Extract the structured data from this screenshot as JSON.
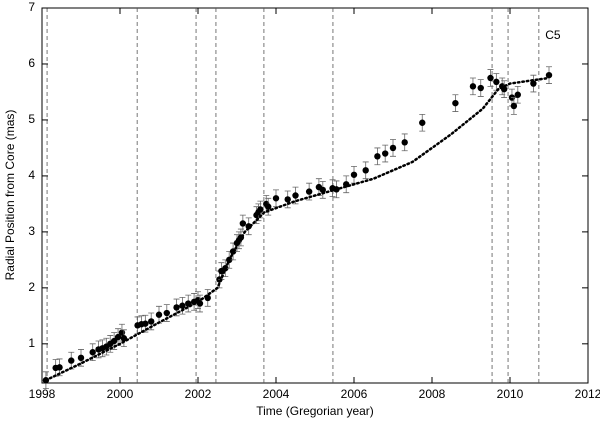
{
  "chart_data": {
    "type": "scatter",
    "xlabel": "Time (Gregorian year)",
    "ylabel": "Radial Position from Core (mas)",
    "annotation": {
      "text": "C5",
      "x": 2011.1,
      "y": 6.5
    },
    "xlim": [
      1998,
      2012
    ],
    "xticks": [
      1998,
      2000,
      2002,
      2004,
      2006,
      2008,
      2010,
      2012
    ],
    "ylim": [
      0.3,
      7
    ],
    "yticks": [
      1,
      2,
      3,
      4,
      5,
      6,
      7
    ],
    "vlines": [
      1998.13,
      2000.44,
      2001.95,
      2002.46,
      2003.69,
      2005.46,
      2009.54,
      2009.95,
      2010.74
    ],
    "series": [
      {
        "style": "points",
        "color": "#000000",
        "x": [
          1998.1,
          1998.35,
          1998.45,
          1998.75,
          1999.0,
          1999.3,
          1999.45,
          1999.55,
          1999.65,
          1999.75,
          1999.85,
          1999.95,
          2000.05,
          2000.1,
          2000.45,
          2000.55,
          2000.65,
          2000.8,
          2001.0,
          2001.2,
          2001.45,
          2001.6,
          2001.75,
          2001.9,
          2002.0,
          2002.05,
          2002.25,
          2002.55,
          2002.6,
          2002.7,
          2002.8,
          2002.9,
          2003.0,
          2003.05,
          2003.1,
          2003.15,
          2003.3,
          2003.5,
          2003.55,
          2003.6,
          2003.75,
          2003.8,
          2004.0,
          2004.3,
          2004.5,
          2004.85,
          2005.1,
          2005.2,
          2005.45,
          2005.55,
          2005.8,
          2006.0,
          2006.3,
          2006.6,
          2006.8,
          2007.0,
          2007.3,
          2007.75,
          2008.6,
          2009.05,
          2009.25,
          2009.5,
          2009.65,
          2009.8,
          2009.85,
          2010.05,
          2010.1,
          2010.2,
          2010.6,
          2011.0
        ],
        "values": [
          0.35,
          0.57,
          0.58,
          0.7,
          0.75,
          0.85,
          0.9,
          0.92,
          0.95,
          1.0,
          1.05,
          1.12,
          1.2,
          1.1,
          1.33,
          1.35,
          1.36,
          1.4,
          1.52,
          1.55,
          1.65,
          1.68,
          1.72,
          1.75,
          1.78,
          1.72,
          1.82,
          2.15,
          2.3,
          2.35,
          2.5,
          2.65,
          2.8,
          2.85,
          2.9,
          3.15,
          3.1,
          3.3,
          3.35,
          3.4,
          3.5,
          3.45,
          3.6,
          3.58,
          3.65,
          3.72,
          3.8,
          3.75,
          3.78,
          3.76,
          3.85,
          4.02,
          4.1,
          4.35,
          4.4,
          4.5,
          4.6,
          4.95,
          5.3,
          5.6,
          5.57,
          5.75,
          5.68,
          5.6,
          5.55,
          5.4,
          5.25,
          5.45,
          5.65,
          5.8
        ],
        "errors": [
          0.15,
          0.15,
          0.15,
          0.15,
          0.15,
          0.15,
          0.15,
          0.15,
          0.15,
          0.15,
          0.15,
          0.15,
          0.15,
          0.15,
          0.15,
          0.15,
          0.15,
          0.15,
          0.15,
          0.15,
          0.15,
          0.15,
          0.15,
          0.15,
          0.15,
          0.15,
          0.15,
          0.15,
          0.15,
          0.15,
          0.15,
          0.15,
          0.15,
          0.15,
          0.15,
          0.15,
          0.15,
          0.15,
          0.15,
          0.15,
          0.15,
          0.15,
          0.15,
          0.15,
          0.15,
          0.15,
          0.15,
          0.15,
          0.15,
          0.15,
          0.15,
          0.15,
          0.15,
          0.15,
          0.15,
          0.15,
          0.15,
          0.15,
          0.15,
          0.15,
          0.15,
          0.15,
          0.15,
          0.15,
          0.15,
          0.15,
          0.15,
          0.15,
          0.15,
          0.15
        ]
      },
      {
        "style": "dotted-line",
        "color": "#000000",
        "x": [
          1998.1,
          1999.0,
          2000.0,
          2001.0,
          2002.0,
          2002.5,
          2002.8,
          2003.2,
          2003.7,
          2004.5,
          2005.5,
          2006.5,
          2007.5,
          2008.5,
          2009.3,
          2009.7,
          2010.0,
          2010.5,
          2011.0
        ],
        "values": [
          0.35,
          0.65,
          1.0,
          1.38,
          1.75,
          2.0,
          2.5,
          3.0,
          3.35,
          3.55,
          3.75,
          3.95,
          4.25,
          4.75,
          5.2,
          5.55,
          5.65,
          5.7,
          5.75
        ]
      }
    ]
  }
}
